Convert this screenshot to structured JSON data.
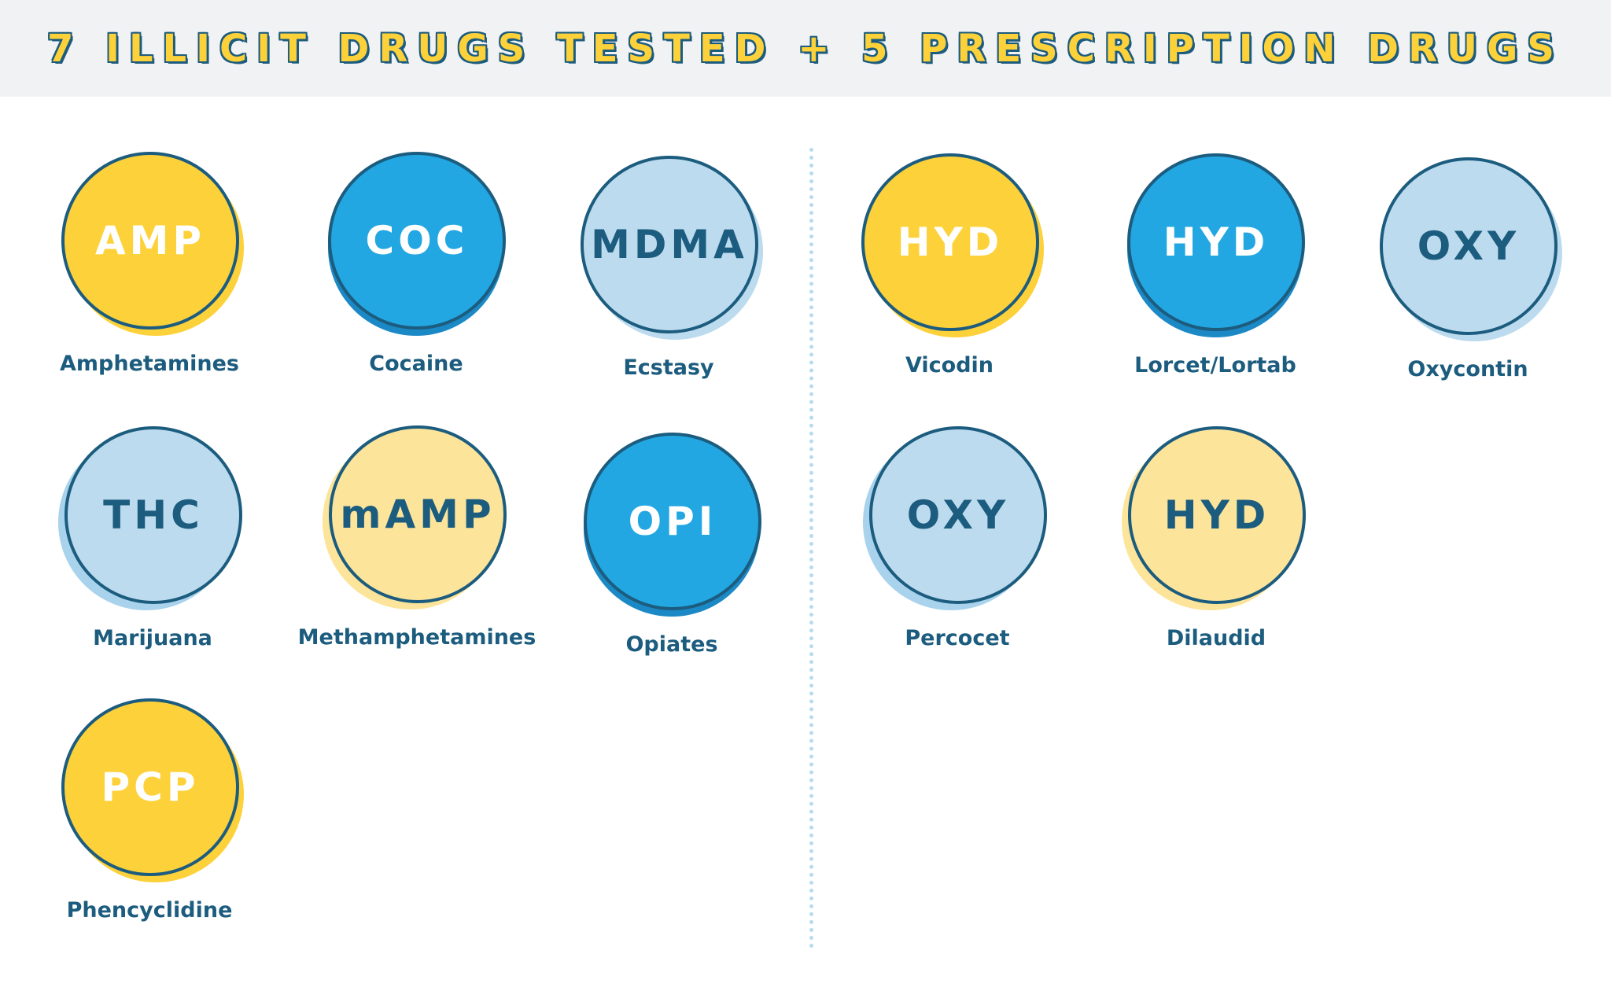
{
  "header": {
    "title": "7 ILLICIT DRUGS TESTED + 5 PRESCRIPTION DRUGS"
  },
  "colors": {
    "yellow": "#fdd13a",
    "light_yellow": "#fde49b",
    "blue": "#22a7e2",
    "dark_blue": "#1b89c6",
    "light_blue": "#bcdbee",
    "pale_blue": "#a9d3ec",
    "navy": "#1c5c7e",
    "white": "#ffffff"
  },
  "illicit": [
    {
      "abbr": "AMP",
      "name": "Amphetamines",
      "fill": "yellow",
      "text": "white",
      "shadow": "yellow",
      "offset": "bottom-right"
    },
    {
      "abbr": "COC",
      "name": "Cocaine",
      "fill": "blue",
      "text": "white",
      "shadow": "dark_blue",
      "offset": "bottom"
    },
    {
      "abbr": "MDMA",
      "name": "Ecstasy",
      "fill": "light_blue",
      "text": "navy",
      "shadow": "light_blue",
      "offset": "bottom-right"
    },
    {
      "abbr": "THC",
      "name": "Marijuana",
      "fill": "light_blue",
      "text": "navy",
      "shadow": "pale_blue",
      "offset": "bottom-left"
    },
    {
      "abbr": "mAMP",
      "name": "Methamphetamines",
      "fill": "light_yellow",
      "text": "navy",
      "shadow": "light_yellow",
      "offset": "bottom-left"
    },
    {
      "abbr": "OPI",
      "name": "Opiates",
      "fill": "blue",
      "text": "white",
      "shadow": "dark_blue",
      "offset": "bottom"
    },
    {
      "abbr": "PCP",
      "name": "Phencyclidine",
      "fill": "yellow",
      "text": "white",
      "shadow": "yellow",
      "offset": "bottom-right"
    }
  ],
  "prescription": [
    {
      "abbr": "HYD",
      "name": "Vicodin",
      "fill": "yellow",
      "text": "white",
      "shadow": "yellow",
      "offset": "bottom-right"
    },
    {
      "abbr": "HYD",
      "name": "Lorcet/Lortab",
      "fill": "blue",
      "text": "white",
      "shadow": "dark_blue",
      "offset": "bottom"
    },
    {
      "abbr": "OXY",
      "name": "Oxycontin",
      "fill": "light_blue",
      "text": "navy",
      "shadow": "light_blue",
      "offset": "bottom-right"
    },
    {
      "abbr": "OXY",
      "name": "Percocet",
      "fill": "light_blue",
      "text": "navy",
      "shadow": "pale_blue",
      "offset": "bottom-left"
    },
    {
      "abbr": "HYD",
      "name": "Dilaudid",
      "fill": "light_yellow",
      "text": "navy",
      "shadow": "light_yellow",
      "offset": "bottom-left"
    }
  ]
}
